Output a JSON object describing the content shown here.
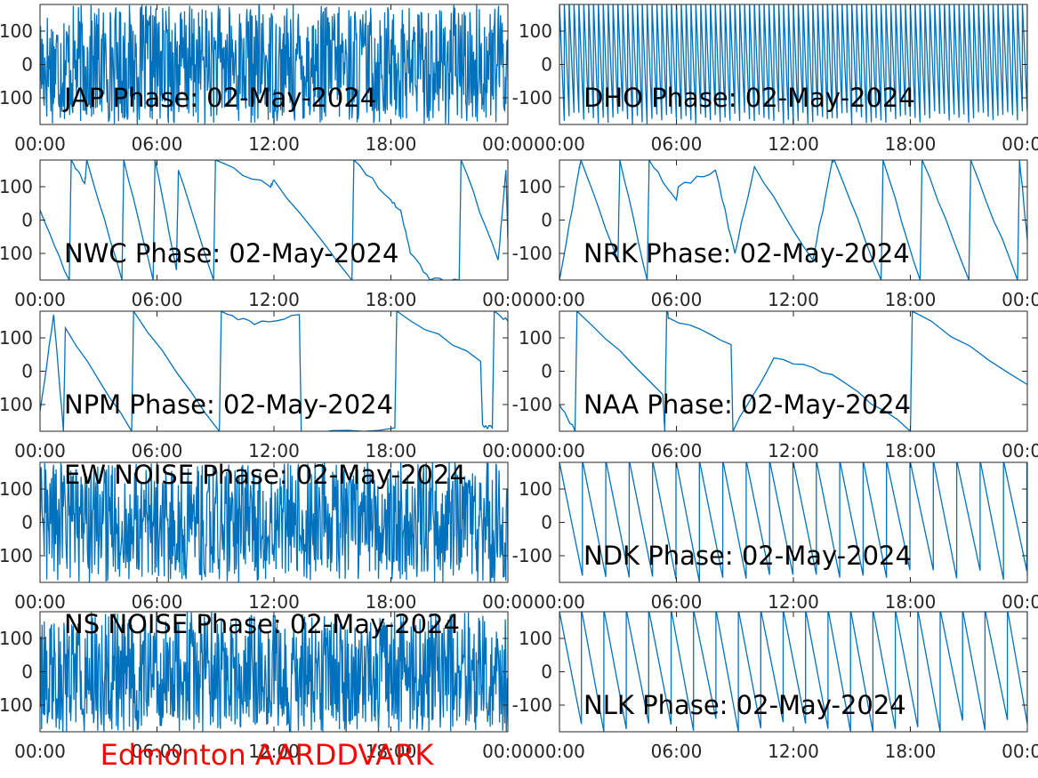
{
  "figure": {
    "footer": "Edmonton AARDDVARK"
  },
  "colors": {
    "series": "#0072bd",
    "axes": "#262626",
    "footer": "#ff0000"
  },
  "chart_data": [
    {
      "type": "line",
      "title": "JAP Phase: 02-May-2024",
      "xlim": [
        0,
        24
      ],
      "ylim": [
        -180,
        180
      ],
      "xticks": [
        "00:00",
        "06:00",
        "12:00",
        "18:00",
        "00:00"
      ],
      "yticks": [
        "-100",
        "0",
        "100"
      ],
      "grid": false,
      "pattern": "noise",
      "x": [
        0,
        2,
        4,
        6,
        8,
        10,
        12,
        14,
        16,
        18,
        20,
        22,
        24
      ],
      "y": [
        0,
        60,
        -40,
        90,
        -120,
        30,
        -10,
        110,
        -80,
        40,
        -60,
        100,
        -20
      ]
    },
    {
      "type": "line",
      "title": "DHO Phase: 02-May-2024",
      "xlim": [
        0,
        24
      ],
      "ylim": [
        -180,
        180
      ],
      "xticks": [
        "00:00",
        "06:00",
        "12:00",
        "18:00",
        "00:00"
      ],
      "yticks": [
        "-100",
        "0",
        "100"
      ],
      "grid": false,
      "pattern": "sawtooth",
      "period_h": 0.25,
      "x": [
        0,
        6,
        7.5,
        8,
        12,
        18,
        24
      ],
      "y": [
        180,
        -180,
        120,
        -120,
        180,
        -180,
        180
      ]
    },
    {
      "type": "line",
      "title": "NWC Phase: 02-May-2024",
      "xlim": [
        0,
        24
      ],
      "ylim": [
        -180,
        180
      ],
      "xticks": [
        "00:00",
        "06:00",
        "12:00",
        "18:00",
        "00:00"
      ],
      "yticks": [
        "-100",
        "0",
        "100"
      ],
      "grid": false,
      "pattern": "segments",
      "x": [
        0,
        1.5,
        1.6,
        2.3,
        2.4,
        4.2,
        4.3,
        5.8,
        5.9,
        7,
        7.1,
        8.9,
        9,
        11.8,
        12,
        16,
        16.1,
        18,
        18.5,
        19,
        20,
        21.5,
        21.6,
        23.5,
        23.9,
        24
      ],
      "y": [
        30,
        -180,
        180,
        110,
        180,
        -180,
        180,
        -180,
        180,
        -150,
        150,
        -180,
        180,
        100,
        120,
        -180,
        180,
        60,
        30,
        -100,
        -180,
        -180,
        180,
        -120,
        150,
        -60
      ]
    },
    {
      "type": "line",
      "title": "NRK Phase: 02-May-2024",
      "xlim": [
        0,
        24
      ],
      "ylim": [
        -180,
        180
      ],
      "xticks": [
        "00:00",
        "06:00",
        "12:00",
        "18:00",
        "00:00"
      ],
      "yticks": [
        "-100",
        "0",
        "100"
      ],
      "grid": false,
      "pattern": "segments",
      "x": [
        0,
        1,
        1.1,
        3,
        3.1,
        4.5,
        4.6,
        6,
        6.1,
        8,
        9,
        10,
        13,
        14,
        14.1,
        16.5,
        16.6,
        18.5,
        18.6,
        21,
        21.1,
        23.5,
        23.6,
        24
      ],
      "y": [
        -180,
        150,
        180,
        -120,
        180,
        -180,
        180,
        60,
        100,
        150,
        -100,
        160,
        -120,
        180,
        180,
        -180,
        180,
        -180,
        180,
        -180,
        180,
        -180,
        180,
        -60
      ]
    },
    {
      "type": "line",
      "title": "NPM Phase: 02-May-2024",
      "xlim": [
        0,
        24
      ],
      "ylim": [
        -180,
        180
      ],
      "xticks": [
        "00:00",
        "06:00",
        "12:00",
        "18:00",
        "00:00"
      ],
      "yticks": [
        "-100",
        "0",
        "100"
      ],
      "grid": false,
      "pattern": "segments",
      "x": [
        0,
        0.7,
        1.2,
        1.3,
        4.7,
        4.8,
        9.2,
        9.3,
        11,
        13.3,
        13.4,
        18.2,
        18.3,
        22.6,
        22.7,
        23.2,
        23.3,
        24
      ],
      "y": [
        -120,
        170,
        -180,
        130,
        -180,
        180,
        -180,
        180,
        140,
        170,
        -180,
        -170,
        180,
        30,
        -160,
        -170,
        180,
        150
      ]
    },
    {
      "type": "line",
      "title": "NAA Phase: 02-May-2024",
      "xlim": [
        0,
        24
      ],
      "ylim": [
        -180,
        180
      ],
      "xticks": [
        "00:00",
        "06:00",
        "12:00",
        "18:00",
        "00:00"
      ],
      "yticks": [
        "-100",
        "0",
        "100"
      ],
      "grid": false,
      "pattern": "segments",
      "x": [
        0,
        0.8,
        0.9,
        5.3,
        5.4,
        5.5,
        5.6,
        8.8,
        8.9,
        11,
        14,
        18,
        18.1,
        24
      ],
      "y": [
        -100,
        -180,
        180,
        -70,
        -180,
        180,
        160,
        80,
        -180,
        40,
        -10,
        -180,
        180,
        -40
      ]
    },
    {
      "type": "line",
      "title": "EW NOISE Phase: 02-May-2024",
      "xlim": [
        0,
        24
      ],
      "ylim": [
        -180,
        180
      ],
      "xticks": [
        "00:00",
        "06:00",
        "12:00",
        "18:00",
        "00:00"
      ],
      "yticks": [
        "-100",
        "0",
        "100"
      ],
      "grid": false,
      "pattern": "noise",
      "x": [
        0,
        2,
        4,
        6,
        8,
        10,
        12,
        14,
        16,
        18,
        20,
        22,
        24
      ],
      "y": [
        -20,
        40,
        -60,
        80,
        -30,
        20,
        -90,
        60,
        -10,
        50,
        -70,
        30,
        0
      ]
    },
    {
      "type": "line",
      "title": "NDK Phase: 02-May-2024",
      "xlim": [
        0,
        24
      ],
      "ylim": [
        -180,
        180
      ],
      "xticks": [
        "00:00",
        "06:00",
        "12:00",
        "18:00",
        "00:00"
      ],
      "yticks": [
        "-100",
        "0",
        "100"
      ],
      "grid": false,
      "pattern": "sawtooth",
      "period_h": 1.2,
      "x": [
        0,
        12,
        24
      ],
      "y": [
        180,
        -180,
        180
      ]
    },
    {
      "type": "line",
      "title": "NS NOISE Phase: 02-May-2024",
      "xlim": [
        0,
        24
      ],
      "ylim": [
        -180,
        180
      ],
      "xticks": [
        "00:00",
        "06:00",
        "12:00",
        "18:00",
        "00:00"
      ],
      "yticks": [
        "-100",
        "0",
        "100"
      ],
      "grid": false,
      "pattern": "noise",
      "x": [
        0,
        2,
        4,
        6,
        8,
        10,
        12,
        14,
        16,
        18,
        20,
        22,
        24
      ],
      "y": [
        10,
        -50,
        70,
        -20,
        90,
        -60,
        30,
        -80,
        40,
        -30,
        60,
        -40,
        20
      ]
    },
    {
      "type": "line",
      "title": "NLK Phase: 02-May-2024",
      "xlim": [
        0,
        24
      ],
      "ylim": [
        -180,
        180
      ],
      "xticks": [
        "00:00",
        "06:00",
        "12:00",
        "18:00",
        "00:00"
      ],
      "yticks": [
        "-100",
        "0",
        "100"
      ],
      "grid": false,
      "pattern": "sawtooth",
      "period_h": 1.15,
      "x": [
        0,
        12,
        24
      ],
      "y": [
        180,
        -180,
        180
      ]
    }
  ]
}
